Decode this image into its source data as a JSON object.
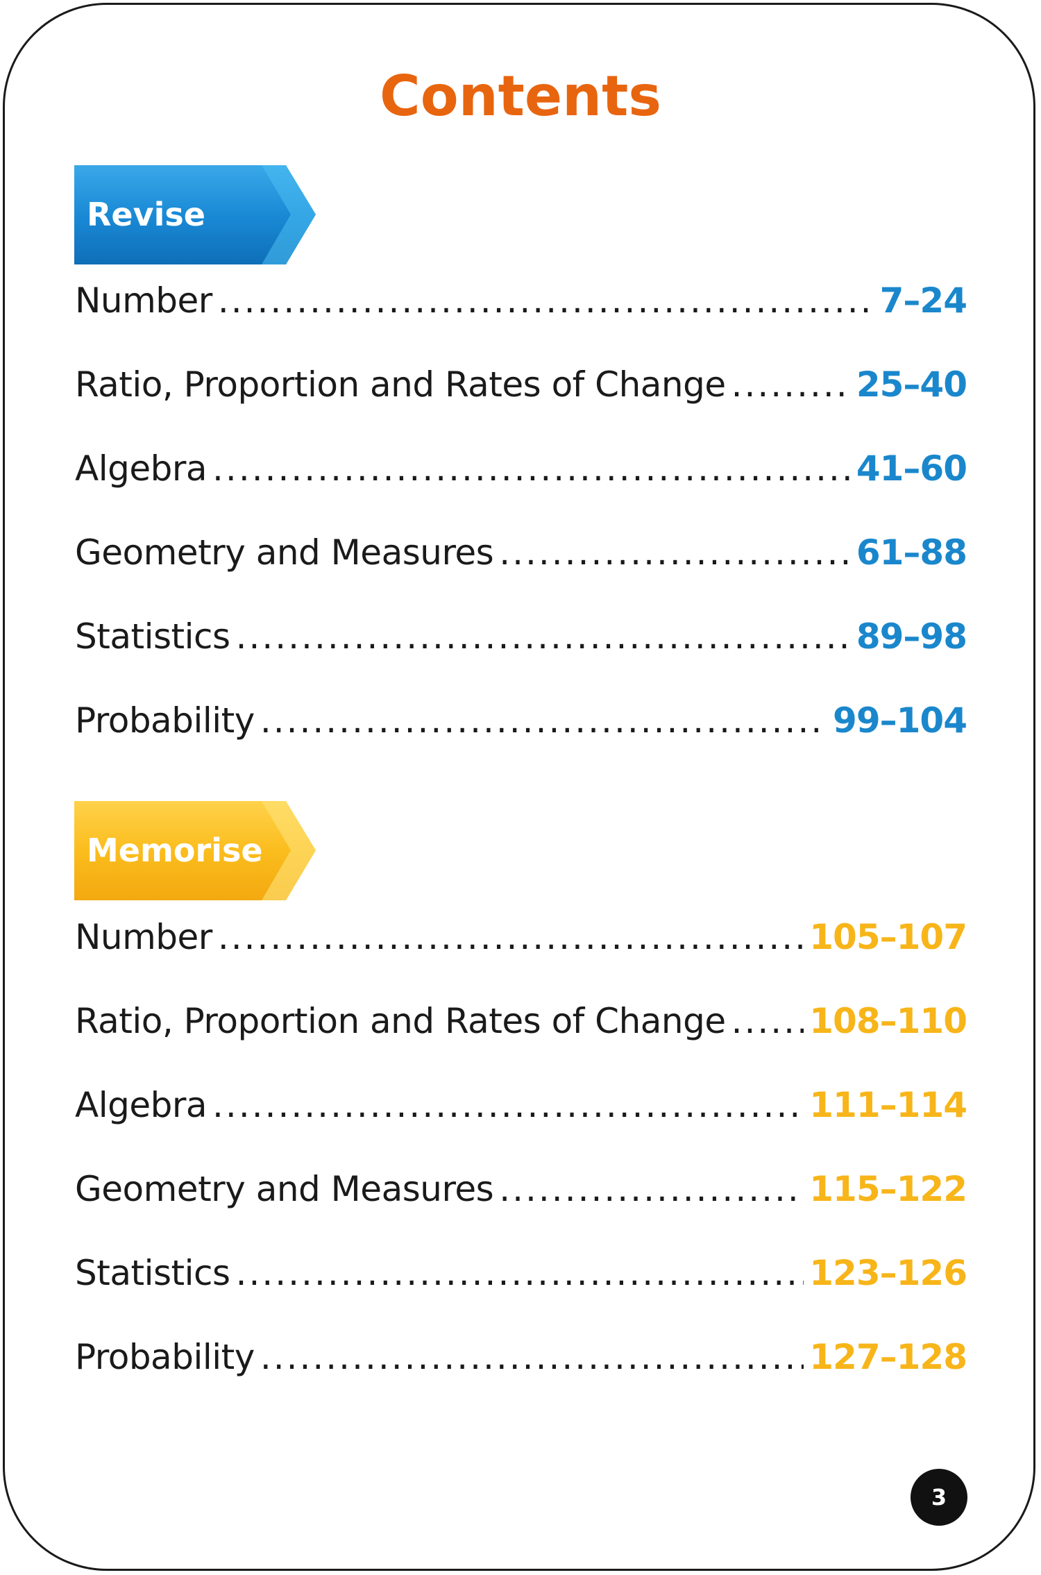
{
  "title": "Contents",
  "colors": {
    "title": "#e8650f",
    "revise_accent": "#1a87cc",
    "memorise_accent": "#f7b51a"
  },
  "sections": [
    {
      "label": "Revise",
      "entries": [
        {
          "title": "Number",
          "pages": "7–24"
        },
        {
          "title": "Ratio, Proportion and Rates of Change",
          "pages": "25–40"
        },
        {
          "title": "Algebra",
          "pages": "41–60"
        },
        {
          "title": "Geometry and Measures",
          "pages": "61–88"
        },
        {
          "title": "Statistics",
          "pages": "89–98"
        },
        {
          "title": "Probability",
          "pages": "99–104"
        }
      ]
    },
    {
      "label": "Memorise",
      "entries": [
        {
          "title": "Number",
          "pages": "105–107"
        },
        {
          "title": "Ratio, Proportion and Rates of Change",
          "pages": "108–110"
        },
        {
          "title": "Algebra",
          "pages": "111–114"
        },
        {
          "title": "Geometry and Measures",
          "pages": "115–122"
        },
        {
          "title": "Statistics",
          "pages": "123–126"
        },
        {
          "title": "Probability",
          "pages": "127–128"
        }
      ]
    }
  ],
  "page_number": "3"
}
